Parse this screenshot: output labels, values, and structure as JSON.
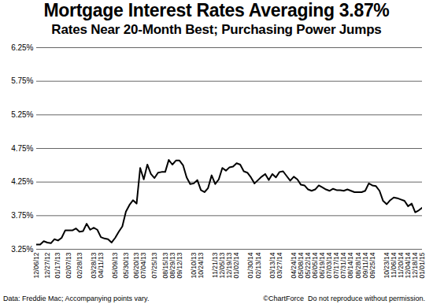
{
  "chart_data": {
    "type": "line",
    "title": "Mortgage Interest Rates Averaging 3.87%",
    "subtitle": "Rates Near 20-Month Best; Purchasing Power Jumps",
    "annotations": [
      "Data: Freddie Mac; Accompanying points vary.",
      "©ChartForce  Do not reproduce without permission."
    ],
    "color": "#000000",
    "grid": true,
    "ylim": [
      3.25,
      6.25
    ],
    "yticks": [
      {
        "value": 3.25,
        "label": "3.25%"
      },
      {
        "value": 3.75,
        "label": "3.75%"
      },
      {
        "value": 4.25,
        "label": "4.25%"
      },
      {
        "value": 4.75,
        "label": "4.75%"
      },
      {
        "value": 5.25,
        "label": "5.25%"
      },
      {
        "value": 5.75,
        "label": "5.75%"
      },
      {
        "value": 6.25,
        "label": "6.25%"
      }
    ],
    "categories": [
      "12/06/12",
      null,
      null,
      "12/27/12",
      null,
      null,
      "01/17/13",
      null,
      null,
      "02/07/13",
      null,
      null,
      "02/28/13",
      null,
      null,
      null,
      "03/28/13",
      null,
      "04/11/13",
      null,
      null,
      null,
      "05/09/13",
      null,
      null,
      "05/30/13",
      null,
      null,
      "06/20/13",
      null,
      "07/04/13",
      null,
      null,
      "07/25/13",
      null,
      null,
      "08/15/13",
      null,
      "08/29/13",
      null,
      "09/12/13",
      null,
      null,
      null,
      "10/10/13",
      null,
      "10/24/13",
      null,
      null,
      null,
      "11/21/13",
      null,
      "12/05/13",
      null,
      "12/19/13",
      null,
      "01/02/14",
      null,
      null,
      null,
      "01/30/14",
      null,
      "02/13/14",
      null,
      null,
      null,
      "03/13/14",
      null,
      "03/27/14",
      null,
      null,
      null,
      "04/24/14",
      null,
      "05/08/14",
      null,
      "05/22/14",
      null,
      "06/05/14",
      null,
      "06/19/14",
      null,
      "07/03/14",
      null,
      "07/17/14",
      null,
      "07/31/14",
      null,
      "08/14/14",
      null,
      "08/28/14",
      null,
      "09/11/14",
      null,
      "09/25/14",
      null,
      null,
      null,
      "10/23/14",
      null,
      "11/06/14",
      null,
      "11/20/14",
      null,
      "12/04/14",
      null,
      "12/18/14",
      null,
      "01/01/15"
    ],
    "values": [
      3.32,
      3.32,
      3.37,
      3.35,
      3.34,
      3.4,
      3.38,
      3.42,
      3.53,
      3.53,
      3.53,
      3.56,
      3.51,
      3.52,
      3.63,
      3.54,
      3.57,
      3.54,
      3.43,
      3.41,
      3.4,
      3.35,
      3.42,
      3.51,
      3.59,
      3.81,
      3.91,
      3.98,
      3.93,
      4.46,
      4.29,
      4.51,
      4.37,
      4.31,
      4.39,
      4.4,
      4.4,
      4.58,
      4.51,
      4.57,
      4.57,
      4.5,
      4.32,
      4.22,
      4.23,
      4.28,
      4.13,
      4.1,
      4.16,
      4.35,
      4.22,
      4.29,
      4.46,
      4.42,
      4.47,
      4.48,
      4.53,
      4.51,
      4.41,
      4.39,
      4.32,
      4.23,
      4.28,
      4.33,
      4.37,
      4.28,
      4.37,
      4.32,
      4.4,
      4.41,
      4.34,
      4.27,
      4.33,
      4.29,
      4.21,
      4.2,
      4.14,
      4.12,
      4.14,
      4.2,
      4.17,
      4.14,
      4.12,
      4.15,
      4.13,
      4.13,
      4.12,
      4.14,
      4.12,
      4.1,
      4.1,
      4.1,
      4.12,
      4.23,
      4.2,
      4.19,
      4.12,
      3.97,
      3.92,
      3.98,
      4.02,
      4.01,
      3.99,
      3.97,
      3.89,
      3.93,
      3.8,
      3.83,
      3.87
    ]
  }
}
